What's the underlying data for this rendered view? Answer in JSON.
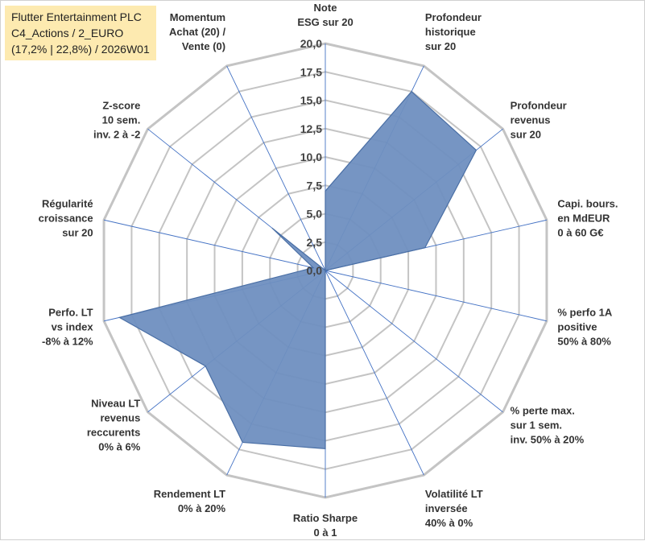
{
  "chart_data": {
    "type": "radar",
    "title_lines": [
      "Flutter Entertainment PLC",
      "C4_Actions / 2_EURO",
      "(17,2% | 22,8%) / 2026W01"
    ],
    "r_min": 0,
    "r_max": 20,
    "tick_labels": [
      "0,0",
      "2,5",
      "5,0",
      "7,5",
      "10,0",
      "12,5",
      "15,0",
      "17,5",
      "20,0"
    ],
    "axes": [
      {
        "label": [
          "Note",
          "ESG sur 20"
        ],
        "value": 7.0
      },
      {
        "label": [
          "Profondeur",
          "historique",
          "sur 20"
        ],
        "value": 17.5
      },
      {
        "label": [
          "Profondeur",
          "revenus",
          "sur 20"
        ],
        "value": 17.0
      },
      {
        "label": [
          "Capi. bours.",
          "en MdEUR",
          "0 à 60 G€"
        ],
        "value": 9.0
      },
      {
        "label": [
          "% perfo 1A",
          "positive",
          "50% à 80%"
        ],
        "value": 0.0
      },
      {
        "label": [
          "% perte max.",
          "sur 1 sem.",
          "inv. 50% à 20%"
        ],
        "value": 0.0
      },
      {
        "label": [
          "Volatilité LT",
          "inversée",
          "40% à 0%"
        ],
        "value": 0.0
      },
      {
        "label": [
          "Ratio Sharpe",
          "0 à 1"
        ],
        "value": 15.7
      },
      {
        "label": [
          "Rendement LT",
          "0% à 20%"
        ],
        "value": 16.8
      },
      {
        "label": [
          "Niveau LT",
          "revenus",
          "reccurents",
          "0% à 6%"
        ],
        "value": 13.5
      },
      {
        "label": [
          "Perfo. LT",
          "vs index",
          "-8% à 12%"
        ],
        "value": 18.6
      },
      {
        "label": [
          "Régularité",
          "croissance",
          "sur 20"
        ],
        "value": 1.1
      },
      {
        "label": [
          "Z-score",
          "10 sem.",
          "inv. 2 à -2"
        ],
        "value": 6.0
      },
      {
        "label": [
          "Momentum",
          "Achat (20) /",
          "Vente (0)"
        ],
        "value": 0.0
      }
    ],
    "colors": {
      "fill": "#6f8fc0",
      "stroke": "#4a6fa5",
      "grid": "#c4c4c4",
      "spoke": "#4472c4"
    }
  }
}
